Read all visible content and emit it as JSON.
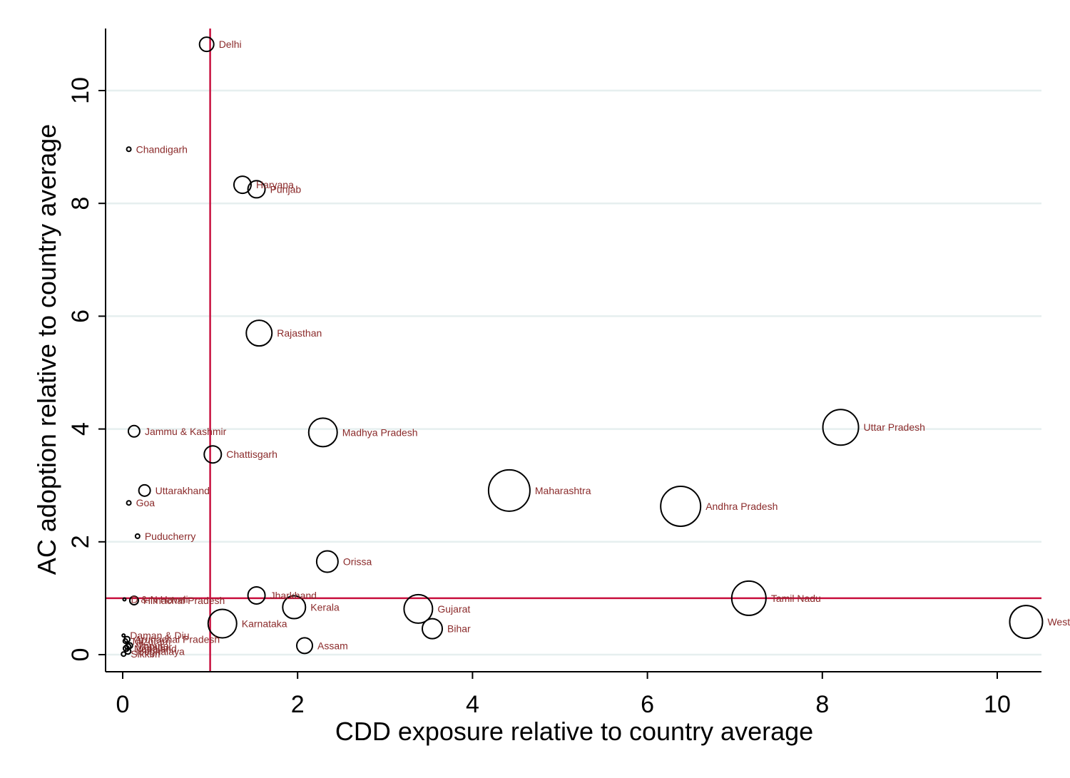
{
  "chart_data": {
    "type": "scatter",
    "title": "",
    "xlabel": "CDD exposure relative to country average",
    "ylabel": "AC adoption relative to country average",
    "xlim": [
      -0.2,
      10.5
    ],
    "ylim": [
      -0.3,
      11.1
    ],
    "xticks": [
      0,
      2,
      4,
      6,
      8,
      10
    ],
    "yticks": [
      0,
      2,
      4,
      6,
      8,
      10
    ],
    "grid": "horizontal",
    "marker": "hollow circle, size proportional to state weight",
    "reference_lines": {
      "x": 1,
      "y": 1
    },
    "points": [
      {
        "label": "Delhi",
        "x": 0.96,
        "y": 10.82,
        "r": 10
      },
      {
        "label": "Chandigarh",
        "x": 0.07,
        "y": 8.96,
        "r": 3
      },
      {
        "label": "Haryana",
        "x": 1.37,
        "y": 8.33,
        "r": 12
      },
      {
        "label": "Punjab",
        "x": 1.53,
        "y": 8.25,
        "r": 12
      },
      {
        "label": "Rajasthan",
        "x": 1.56,
        "y": 5.7,
        "r": 18
      },
      {
        "label": "Jammu & Kashmir",
        "x": 0.13,
        "y": 3.96,
        "r": 8
      },
      {
        "label": "Madhya Pradesh",
        "x": 2.29,
        "y": 3.94,
        "r": 20
      },
      {
        "label": "Uttar Pradesh",
        "x": 8.21,
        "y": 4.03,
        "r": 25
      },
      {
        "label": "Chattisgarh",
        "x": 1.03,
        "y": 3.55,
        "r": 12
      },
      {
        "label": "Uttarakhand",
        "x": 0.25,
        "y": 2.91,
        "r": 8
      },
      {
        "label": "Maharashtra",
        "x": 4.42,
        "y": 2.91,
        "r": 29
      },
      {
        "label": "Goa",
        "x": 0.07,
        "y": 2.69,
        "r": 3
      },
      {
        "label": "Andhra Pradesh",
        "x": 6.38,
        "y": 2.63,
        "r": 28
      },
      {
        "label": "Puducherry",
        "x": 0.17,
        "y": 2.1,
        "r": 3
      },
      {
        "label": "Orissa",
        "x": 2.34,
        "y": 1.65,
        "r": 15
      },
      {
        "label": "Jharkhand",
        "x": 1.53,
        "y": 1.05,
        "r": 12
      },
      {
        "label": "Tamil Nadu",
        "x": 7.16,
        "y": 1.0,
        "r": 24
      },
      {
        "label": "D & N Haveli",
        "x": 0.02,
        "y": 0.98,
        "r": 2
      },
      {
        "label": "Himachal Pradesh",
        "x": 0.13,
        "y": 0.96,
        "r": 6
      },
      {
        "label": "Kerala",
        "x": 1.96,
        "y": 0.84,
        "r": 16
      },
      {
        "label": "Gujarat",
        "x": 3.38,
        "y": 0.81,
        "r": 20
      },
      {
        "label": "Karnataka",
        "x": 1.14,
        "y": 0.55,
        "r": 20
      },
      {
        "label": "Bihar",
        "x": 3.54,
        "y": 0.46,
        "r": 14
      },
      {
        "label": "West Bengal",
        "x": 10.33,
        "y": 0.58,
        "r": 23
      },
      {
        "label": "Daman & Diu",
        "x": 0.01,
        "y": 0.34,
        "r": 2
      },
      {
        "label": "Arunachal Pradesh",
        "x": 0.05,
        "y": 0.27,
        "r": 4
      },
      {
        "label": "Assam",
        "x": 2.08,
        "y": 0.16,
        "r": 11
      },
      {
        "label": "Mizoram",
        "x": 0.03,
        "y": 0.24,
        "r": 3
      },
      {
        "label": "Tripura",
        "x": 0.08,
        "y": 0.16,
        "r": 4
      },
      {
        "label": "Manipur",
        "x": 0.06,
        "y": 0.14,
        "r": 4
      },
      {
        "label": "Nagaland",
        "x": 0.04,
        "y": 0.11,
        "r": 4
      },
      {
        "label": "Meghalaya",
        "x": 0.06,
        "y": 0.06,
        "r": 4
      },
      {
        "label": "Sikkim",
        "x": 0.01,
        "y": 0.01,
        "r": 3
      }
    ]
  },
  "colors": {
    "background": "#ffffff",
    "grid": "#e6efef",
    "axis": "#000000",
    "marker": "#000000",
    "label": "#8b2b2b",
    "reference_line": "#c8103e"
  }
}
